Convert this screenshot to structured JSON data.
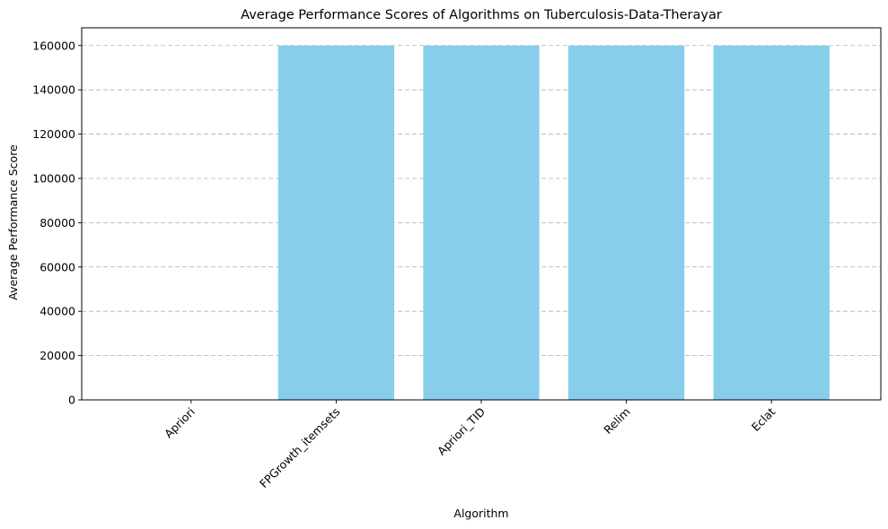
{
  "chart_data": {
    "type": "bar",
    "title": "Average Performance Scores of Algorithms on Tuberculosis-Data-Therayar",
    "xlabel": "Algorithm",
    "ylabel": "Average Performance Score",
    "categories": [
      "Apriori",
      "FPGrowth_itemsets",
      "Apriori_TID",
      "Relim",
      "Eclat"
    ],
    "values": [
      0,
      160000,
      160000,
      160000,
      160000
    ],
    "ylim": [
      0,
      168000
    ],
    "yticks": [
      0,
      20000,
      40000,
      60000,
      80000,
      100000,
      120000,
      140000,
      160000
    ],
    "ytick_labels": [
      "0",
      "20000",
      "40000",
      "60000",
      "80000",
      "100000",
      "120000",
      "140000",
      "160000"
    ],
    "xtick_rotation": 45,
    "grid": "y-dashed",
    "bar_color": "#87ceeb",
    "legend": "none"
  }
}
